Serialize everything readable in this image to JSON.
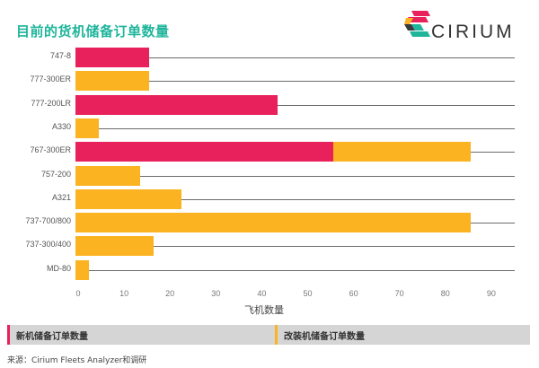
{
  "header": {
    "title": "目前的货机储备订单数量",
    "logo_text": "CIRIUM"
  },
  "colors": {
    "new": "#e8205b",
    "conversion": "#fbb321",
    "title": "#1fb59b",
    "legend_bg": "#d5d5d5"
  },
  "chart_data": {
    "type": "bar",
    "orientation": "horizontal",
    "stacked": true,
    "title": "目前的货机储备订单数量",
    "xlabel": "飞机数量",
    "ylabel": "",
    "xlim": [
      0,
      90
    ],
    "xticks": [
      0,
      10,
      20,
      30,
      40,
      50,
      60,
      70,
      80,
      90
    ],
    "categories": [
      "747-8",
      "777-300ER",
      "777-200LR",
      "A330",
      "767-300ER",
      "757-200",
      "A321",
      "737-700/800",
      "737-300/400",
      "MD-80"
    ],
    "series": [
      {
        "name": "新机储备订单数量",
        "color": "#e8205b",
        "values": [
          16,
          0,
          44,
          0,
          56,
          0,
          0,
          0,
          0,
          0
        ]
      },
      {
        "name": "改装机储备订单数量",
        "color": "#fbb321",
        "values": [
          0,
          16,
          0,
          5,
          30,
          14,
          23,
          86,
          17,
          3
        ]
      }
    ],
    "legend_position": "bottom",
    "grid": false
  },
  "axis": {
    "ticks": [
      "0",
      "10",
      "20",
      "30",
      "40",
      "50",
      "60",
      "70",
      "80",
      "90"
    ],
    "xlabel": "飞机数量"
  },
  "legend": {
    "new_label": "新机储备订单数量",
    "conversion_label": "改装机储备订单数量"
  },
  "footer": {
    "source": "来源：Cirium Fleets Analyzer和调研"
  }
}
